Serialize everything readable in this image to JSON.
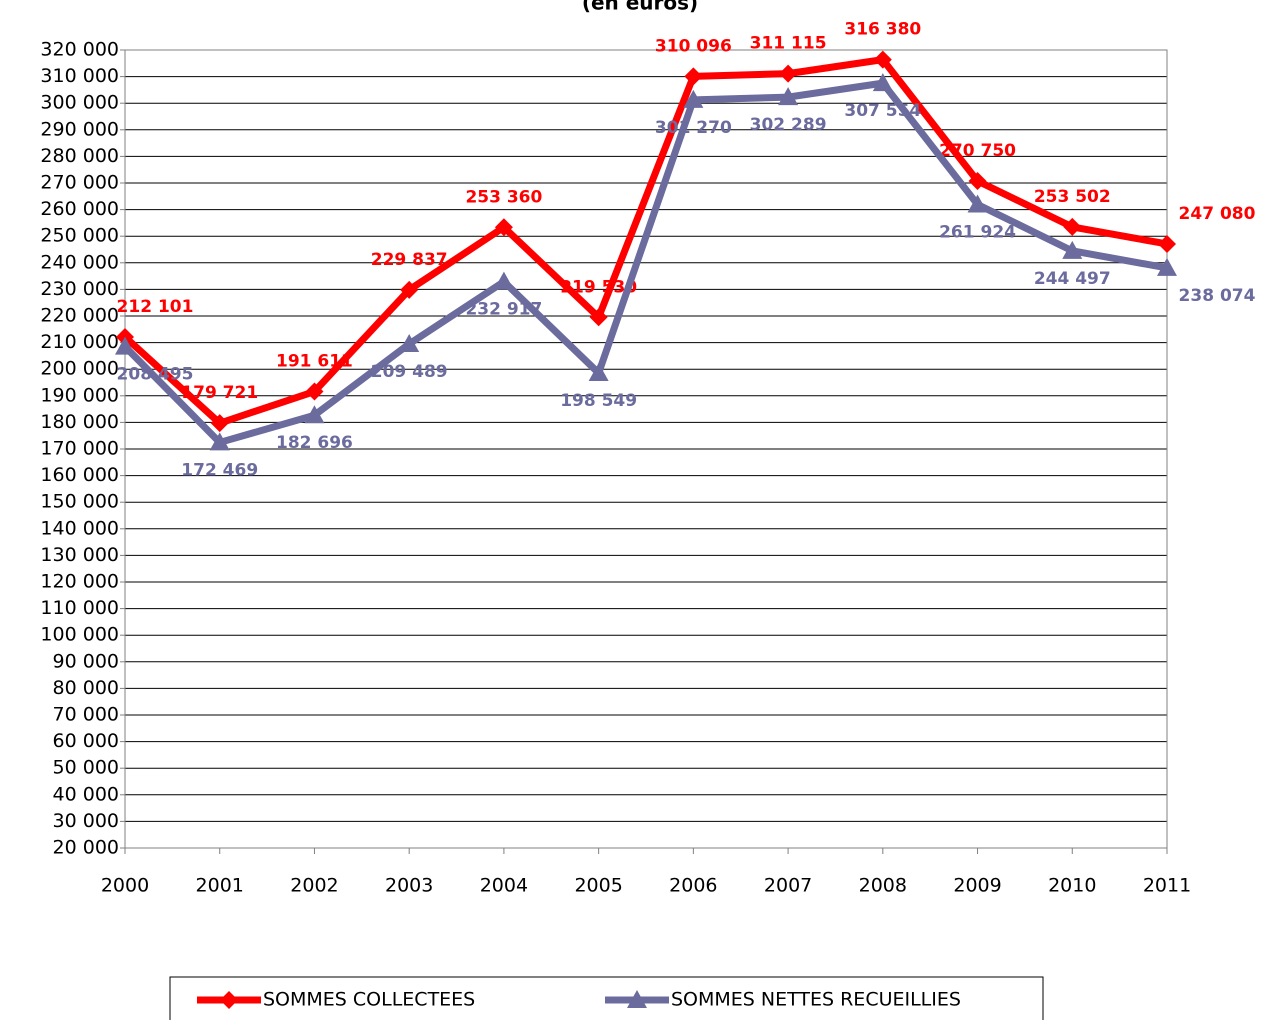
{
  "chart_data": {
    "type": "line",
    "title": "(en euros)",
    "categories": [
      "2000",
      "2001",
      "2002",
      "2003",
      "2004",
      "2005",
      "2006",
      "2007",
      "2008",
      "2009",
      "2010",
      "2011"
    ],
    "series": [
      {
        "name": "SOMMES COLLECTEES",
        "color": "#ff0000",
        "marker": "diamond",
        "values": [
          212101,
          179721,
          191611,
          229837,
          253360,
          219530,
          310096,
          311115,
          316380,
          270750,
          253502,
          247080
        ],
        "value_labels": [
          "212 101",
          "179 721",
          "191 611",
          "229 837",
          "253 360",
          "219 530",
          "310 096",
          "311 115",
          "316 380",
          "270 750",
          "253 502",
          "247 080"
        ]
      },
      {
        "name": "SOMMES NETTES RECUEILLIES",
        "color": "#6b6b9e",
        "marker": "triangle",
        "values": [
          208495,
          172469,
          182696,
          209489,
          232917,
          198549,
          301270,
          302289,
          307554,
          261924,
          244497,
          238074
        ],
        "value_labels": [
          "208 495",
          "172 469",
          "182 696",
          "209 489",
          "232 917",
          "198 549",
          "301 270",
          "302 289",
          "307 554",
          "261 924",
          "244 497",
          "238 074"
        ]
      }
    ],
    "ylim": [
      20000,
      320000
    ],
    "yticks": [
      {
        "value": 20000,
        "label": "20 000"
      },
      {
        "value": 30000,
        "label": "30 000"
      },
      {
        "value": 40000,
        "label": "40 000"
      },
      {
        "value": 50000,
        "label": "50 000"
      },
      {
        "value": 60000,
        "label": "60 000"
      },
      {
        "value": 70000,
        "label": "70 000"
      },
      {
        "value": 80000,
        "label": "80 000"
      },
      {
        "value": 90000,
        "label": "90 000"
      },
      {
        "value": 100000,
        "label": "100 000"
      },
      {
        "value": 110000,
        "label": "110 000"
      },
      {
        "value": 120000,
        "label": "120 000"
      },
      {
        "value": 130000,
        "label": "130 000"
      },
      {
        "value": 140000,
        "label": "140 000"
      },
      {
        "value": 150000,
        "label": "150 000"
      },
      {
        "value": 160000,
        "label": "160 000"
      },
      {
        "value": 170000,
        "label": "170 000"
      },
      {
        "value": 180000,
        "label": "180 000"
      },
      {
        "value": 190000,
        "label": "190 000"
      },
      {
        "value": 200000,
        "label": "200 000"
      },
      {
        "value": 210000,
        "label": "210 000"
      },
      {
        "value": 220000,
        "label": "220 000"
      },
      {
        "value": 230000,
        "label": "230 000"
      },
      {
        "value": 240000,
        "label": "240 000"
      },
      {
        "value": 250000,
        "label": "250 000"
      },
      {
        "value": 260000,
        "label": "260 000"
      },
      {
        "value": 270000,
        "label": "270 000"
      },
      {
        "value": 280000,
        "label": "280 000"
      },
      {
        "value": 290000,
        "label": "290 000"
      },
      {
        "value": 300000,
        "label": "300 000"
      },
      {
        "value": 310000,
        "label": "310 000"
      },
      {
        "value": 320000,
        "label": "320 000"
      }
    ],
    "grid": true,
    "legend": "bottom"
  }
}
